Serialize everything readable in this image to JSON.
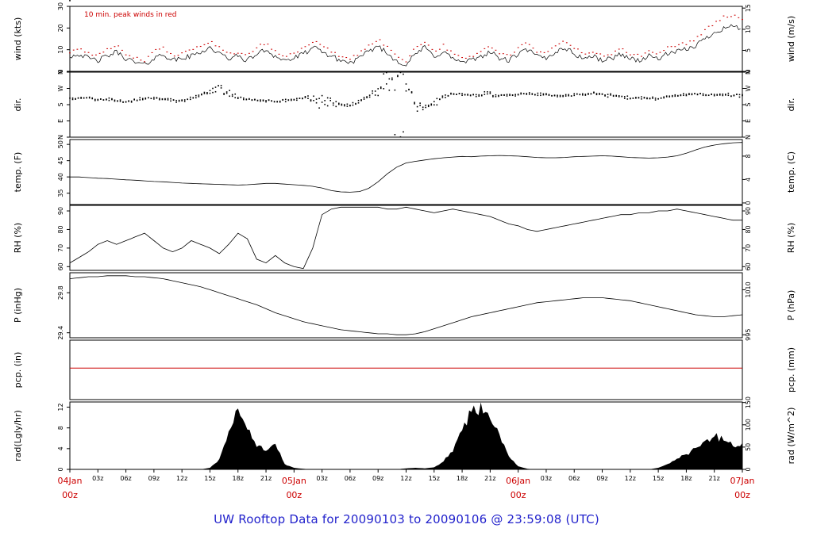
{
  "title": {
    "text": "UW Rooftop Data for 20090103  to  20090106 @ 23:59:08  (UTC)",
    "color": "#2222cc"
  },
  "annotation": {
    "text": "10 min. peak winds in red",
    "color": "#cc0000"
  },
  "colors": {
    "trace": "#000000",
    "peak": "#cc0000",
    "day_label": "#cc0000",
    "border": "#000000"
  },
  "x_axis": {
    "start_hour": 0,
    "end_hour": 72,
    "tick_step_hours": 3,
    "minor_labels": [
      "03z",
      "06z",
      "09z",
      "12z",
      "15z",
      "18z",
      "21z"
    ],
    "day_labels": [
      {
        "hour": 0,
        "line1": "04Jan",
        "line2": "00z"
      },
      {
        "hour": 24,
        "line1": "05Jan",
        "line2": "00z"
      },
      {
        "hour": 48,
        "line1": "06Jan",
        "line2": "00z"
      },
      {
        "hour": 72,
        "line1": "07Jan",
        "line2": "00z"
      }
    ]
  },
  "chart_data": {
    "type": "line",
    "subtype": "meteogram-stacked-panels",
    "x_unit": "hours since 2009-01-04 00z",
    "x_step": 1,
    "panels": [
      {
        "id": "wind",
        "type": "line",
        "label_left": "wind (kts)",
        "label_right": "wind (m/s)",
        "ylim": [
          0,
          30
        ],
        "ticks_left": [
          {
            "v": 0,
            "t": "0"
          },
          {
            "v": 10,
            "t": "10"
          },
          {
            "v": 20,
            "t": "20"
          },
          {
            "v": 30,
            "t": "30"
          }
        ],
        "ticks_right": [
          {
            "v": 0,
            "t": "0"
          },
          {
            "v": 9.7,
            "t": "5"
          },
          {
            "v": 19.4,
            "t": "10"
          },
          {
            "v": 29.2,
            "t": "15"
          }
        ],
        "series": [
          {
            "name": "wind-average",
            "style": "noisy-line",
            "color": "#000000",
            "values": [
              7,
              8,
              6,
              5,
              7,
              9,
              6,
              4,
              3,
              6,
              8,
              5,
              6,
              7,
              9,
              11,
              8,
              6,
              7,
              5,
              8,
              10,
              7,
              5,
              6,
              8,
              11,
              9,
              7,
              5,
              4,
              6,
              9,
              12,
              8,
              5,
              3,
              8,
              11,
              7,
              9,
              6,
              4,
              5,
              7,
              9,
              6,
              5,
              8,
              10,
              7,
              6,
              9,
              11,
              8,
              6,
              7,
              5,
              6,
              8,
              6,
              5,
              7,
              6,
              8,
              9,
              10,
              12,
              15,
              18,
              20,
              21,
              19
            ]
          },
          {
            "name": "wind-peak-10min",
            "style": "peak-dots",
            "color": "#cc0000",
            "values": [
              9,
              11,
              8,
              7,
              10,
              12,
              8,
              6,
              5,
              9,
              11,
              7,
              8,
              10,
              12,
              14,
              11,
              8,
              9,
              7,
              11,
              13,
              9,
              7,
              8,
              11,
              14,
              12,
              9,
              7,
              6,
              8,
              12,
              15,
              11,
              7,
              5,
              11,
              14,
              9,
              12,
              8,
              6,
              7,
              9,
              12,
              8,
              7,
              11,
              13,
              9,
              8,
              12,
              14,
              11,
              8,
              9,
              7,
              8,
              11,
              8,
              7,
              9,
              8,
              11,
              12,
              13,
              15,
              19,
              22,
              25,
              26,
              24
            ]
          }
        ]
      },
      {
        "id": "dir",
        "type": "scatter",
        "label_left": "dir.",
        "label_right": "dir.",
        "ylim": [
          0,
          360
        ],
        "ticks_left": [
          {
            "v": 0,
            "t": "N"
          },
          {
            "v": 90,
            "t": "E"
          },
          {
            "v": 180,
            "t": "S"
          },
          {
            "v": 270,
            "t": "W"
          },
          {
            "v": 360,
            "t": "N"
          }
        ],
        "ticks_right": [
          {
            "v": 0,
            "t": "N"
          },
          {
            "v": 90,
            "t": "E"
          },
          {
            "v": 180,
            "t": "S"
          },
          {
            "v": 270,
            "t": "W"
          },
          {
            "v": 360,
            "t": "N"
          }
        ],
        "series": [
          {
            "name": "wind-direction",
            "style": "scatter",
            "color": "#000000",
            "values": [
              210,
              215,
              220,
              205,
              210,
              200,
              195,
              205,
              215,
              220,
              210,
              205,
              200,
              215,
              235,
              255,
              270,
              240,
              220,
              210,
              205,
              200,
              198,
              205,
              210,
              218,
              212,
              195,
              185,
              178,
              172,
              200,
              228,
              250,
              300,
              340,
              310,
              200,
              160,
              185,
              220,
              240,
              236,
              232,
              235,
              240,
              236,
              230,
              236,
              240,
              238,
              234,
              230,
              228,
              232,
              236,
              240,
              236,
              230,
              226,
              220,
              216,
              212,
              216,
              222,
              230,
              236,
              240,
              238,
              236,
              234,
              232,
              230
            ],
            "spread": [
              12,
              12,
              12,
              12,
              12,
              12,
              12,
              12,
              12,
              12,
              12,
              12,
              12,
              12,
              12,
              35,
              40,
              35,
              12,
              12,
              12,
              12,
              12,
              12,
              12,
              12,
              40,
              60,
              45,
              15,
              15,
              20,
              30,
              90,
              120,
              140,
              130,
              100,
              60,
              20,
              15,
              12,
              12,
              12,
              25,
              20,
              15,
              12,
              12,
              12,
              12,
              12,
              12,
              12,
              12,
              12,
              12,
              12,
              12,
              12,
              12,
              12,
              12,
              12,
              12,
              12,
              12,
              12,
              12,
              12,
              12,
              12,
              12
            ]
          }
        ]
      },
      {
        "id": "temp",
        "type": "line",
        "label_left": "temp. (F)",
        "label_right": "temp. (C)",
        "ylim": [
          31.5,
          51.5
        ],
        "ticks_left": [
          {
            "v": 35,
            "t": "35"
          },
          {
            "v": 40,
            "t": "40"
          },
          {
            "v": 45,
            "t": "45"
          },
          {
            "v": 50,
            "t": "50"
          }
        ],
        "ticks_right": [
          {
            "v": 32,
            "t": "0"
          },
          {
            "v": 39.2,
            "t": "4"
          },
          {
            "v": 46.4,
            "t": "8"
          }
        ],
        "series": [
          {
            "name": "temperature",
            "style": "line",
            "color": "#000000",
            "values": [
              40.0,
              40.0,
              39.8,
              39.6,
              39.5,
              39.3,
              39.1,
              39.0,
              38.8,
              38.6,
              38.5,
              38.3,
              38.1,
              38.0,
              37.9,
              37.8,
              37.7,
              37.6,
              37.5,
              37.6,
              37.8,
              38.0,
              38.0,
              37.8,
              37.6,
              37.4,
              37.1,
              36.6,
              35.8,
              35.4,
              35.3,
              35.5,
              36.5,
              38.5,
              41.0,
              43.0,
              44.3,
              44.8,
              45.2,
              45.6,
              45.9,
              46.1,
              46.3,
              46.2,
              46.4,
              46.5,
              46.6,
              46.5,
              46.4,
              46.2,
              46.0,
              45.9,
              45.9,
              46.0,
              46.2,
              46.3,
              46.4,
              46.5,
              46.4,
              46.2,
              46.0,
              45.9,
              45.8,
              45.9,
              46.1,
              46.5,
              47.3,
              48.3,
              49.2,
              49.8,
              50.2,
              50.5,
              50.6
            ]
          }
        ]
      },
      {
        "id": "rh",
        "type": "line",
        "label_left": "RH (%)",
        "label_right": "RH (%)",
        "ylim": [
          58,
          93
        ],
        "ticks_left": [
          {
            "v": 60,
            "t": "60"
          },
          {
            "v": 70,
            "t": "70"
          },
          {
            "v": 80,
            "t": "80"
          },
          {
            "v": 90,
            "t": "90"
          }
        ],
        "ticks_right": [
          {
            "v": 60,
            "t": "60"
          },
          {
            "v": 70,
            "t": "70"
          },
          {
            "v": 80,
            "t": "80"
          },
          {
            "v": 90,
            "t": "90"
          }
        ],
        "series": [
          {
            "name": "relative-humidity",
            "style": "line",
            "color": "#000000",
            "values": [
              62,
              65,
              68,
              72,
              74,
              72,
              74,
              76,
              78,
              74,
              70,
              68,
              70,
              74,
              72,
              70,
              67,
              72,
              78,
              75,
              64,
              62,
              66,
              62,
              60,
              59,
              70,
              88,
              91,
              92,
              92,
              92,
              92,
              92,
              91,
              91,
              92,
              91,
              90,
              89,
              90,
              91,
              90,
              89,
              88,
              87,
              85,
              83,
              82,
              80,
              79,
              80,
              81,
              82,
              83,
              84,
              85,
              86,
              87,
              88,
              88,
              89,
              89,
              90,
              90,
              91,
              90,
              89,
              88,
              87,
              86,
              85,
              85
            ]
          }
        ]
      },
      {
        "id": "pressure",
        "type": "line",
        "label_left": "P (inHg)",
        "label_right": "P (hPa)",
        "ylim": [
          29.35,
          30.0
        ],
        "ticks_left": [
          {
            "v": 29.4,
            "t": "29.4"
          },
          {
            "v": 29.8,
            "t": "29.8"
          }
        ],
        "ticks_right": [
          {
            "v": 29.38,
            "t": "995"
          },
          {
            "v": 29.83,
            "t": "1010"
          }
        ],
        "series": [
          {
            "name": "pressure",
            "style": "line",
            "color": "#000000",
            "values": [
              29.94,
              29.95,
              29.96,
              29.96,
              29.97,
              29.97,
              29.97,
              29.96,
              29.96,
              29.95,
              29.94,
              29.92,
              29.9,
              29.88,
              29.86,
              29.83,
              29.8,
              29.77,
              29.74,
              29.71,
              29.68,
              29.64,
              29.6,
              29.57,
              29.54,
              29.51,
              29.49,
              29.47,
              29.45,
              29.43,
              29.42,
              29.41,
              29.4,
              29.39,
              29.39,
              29.38,
              29.38,
              29.39,
              29.41,
              29.44,
              29.47,
              29.5,
              29.53,
              29.56,
              29.58,
              29.6,
              29.62,
              29.64,
              29.66,
              29.68,
              29.7,
              29.71,
              29.72,
              29.73,
              29.74,
              29.75,
              29.75,
              29.75,
              29.74,
              29.73,
              29.72,
              29.7,
              29.68,
              29.66,
              29.64,
              29.62,
              29.6,
              29.58,
              29.57,
              29.56,
              29.56,
              29.57,
              29.58
            ]
          }
        ]
      },
      {
        "id": "pcp",
        "type": "line",
        "label_left": "pcp. (in)",
        "label_right": "pcp. (mm)",
        "ylim": [
          -0.53,
          0.47
        ],
        "ticks_left": [],
        "ticks_right": [],
        "series": [
          {
            "name": "precipitation-accumulated",
            "style": "red-hline",
            "color": "#cc0000",
            "value": 0
          }
        ]
      },
      {
        "id": "rad",
        "type": "area",
        "label_left": "rad(Lgly/hr)",
        "label_right": "rad (W/m^2)",
        "ylim": [
          0,
          13
        ],
        "ticks_left": [
          {
            "v": 0,
            "t": "0"
          },
          {
            "v": 4,
            "t": "4"
          },
          {
            "v": 8,
            "t": "8"
          },
          {
            "v": 12,
            "t": "12"
          }
        ],
        "ticks_right": [
          {
            "v": 0,
            "t": "0"
          },
          {
            "v": 4.3,
            "t": "50"
          },
          {
            "v": 8.6,
            "t": "100"
          },
          {
            "v": 12.9,
            "t": "150"
          }
        ],
        "series": [
          {
            "name": "solar-radiation",
            "style": "area",
            "color": "#000000",
            "values": [
              0,
              0,
              0,
              0,
              0,
              0,
              0,
              0,
              0,
              0,
              0,
              0,
              0,
              0,
              0,
              0.3,
              2,
              7,
              12,
              8,
              4.5,
              3.5,
              4.8,
              1,
              0.3,
              0.1,
              0,
              0,
              0,
              0,
              0,
              0,
              0,
              0,
              0,
              0,
              0.2,
              0.3,
              0.2,
              0.4,
              1.5,
              4,
              8,
              11,
              12.5,
              10,
              6.5,
              2.5,
              0.6,
              0.1,
              0,
              0,
              0,
              0,
              0,
              0,
              0,
              0,
              0,
              0,
              0,
              0,
              0,
              0.3,
              1,
              2,
              3,
              4.2,
              5.5,
              6.5,
              5.5,
              4.5,
              5
            ]
          }
        ]
      }
    ]
  }
}
